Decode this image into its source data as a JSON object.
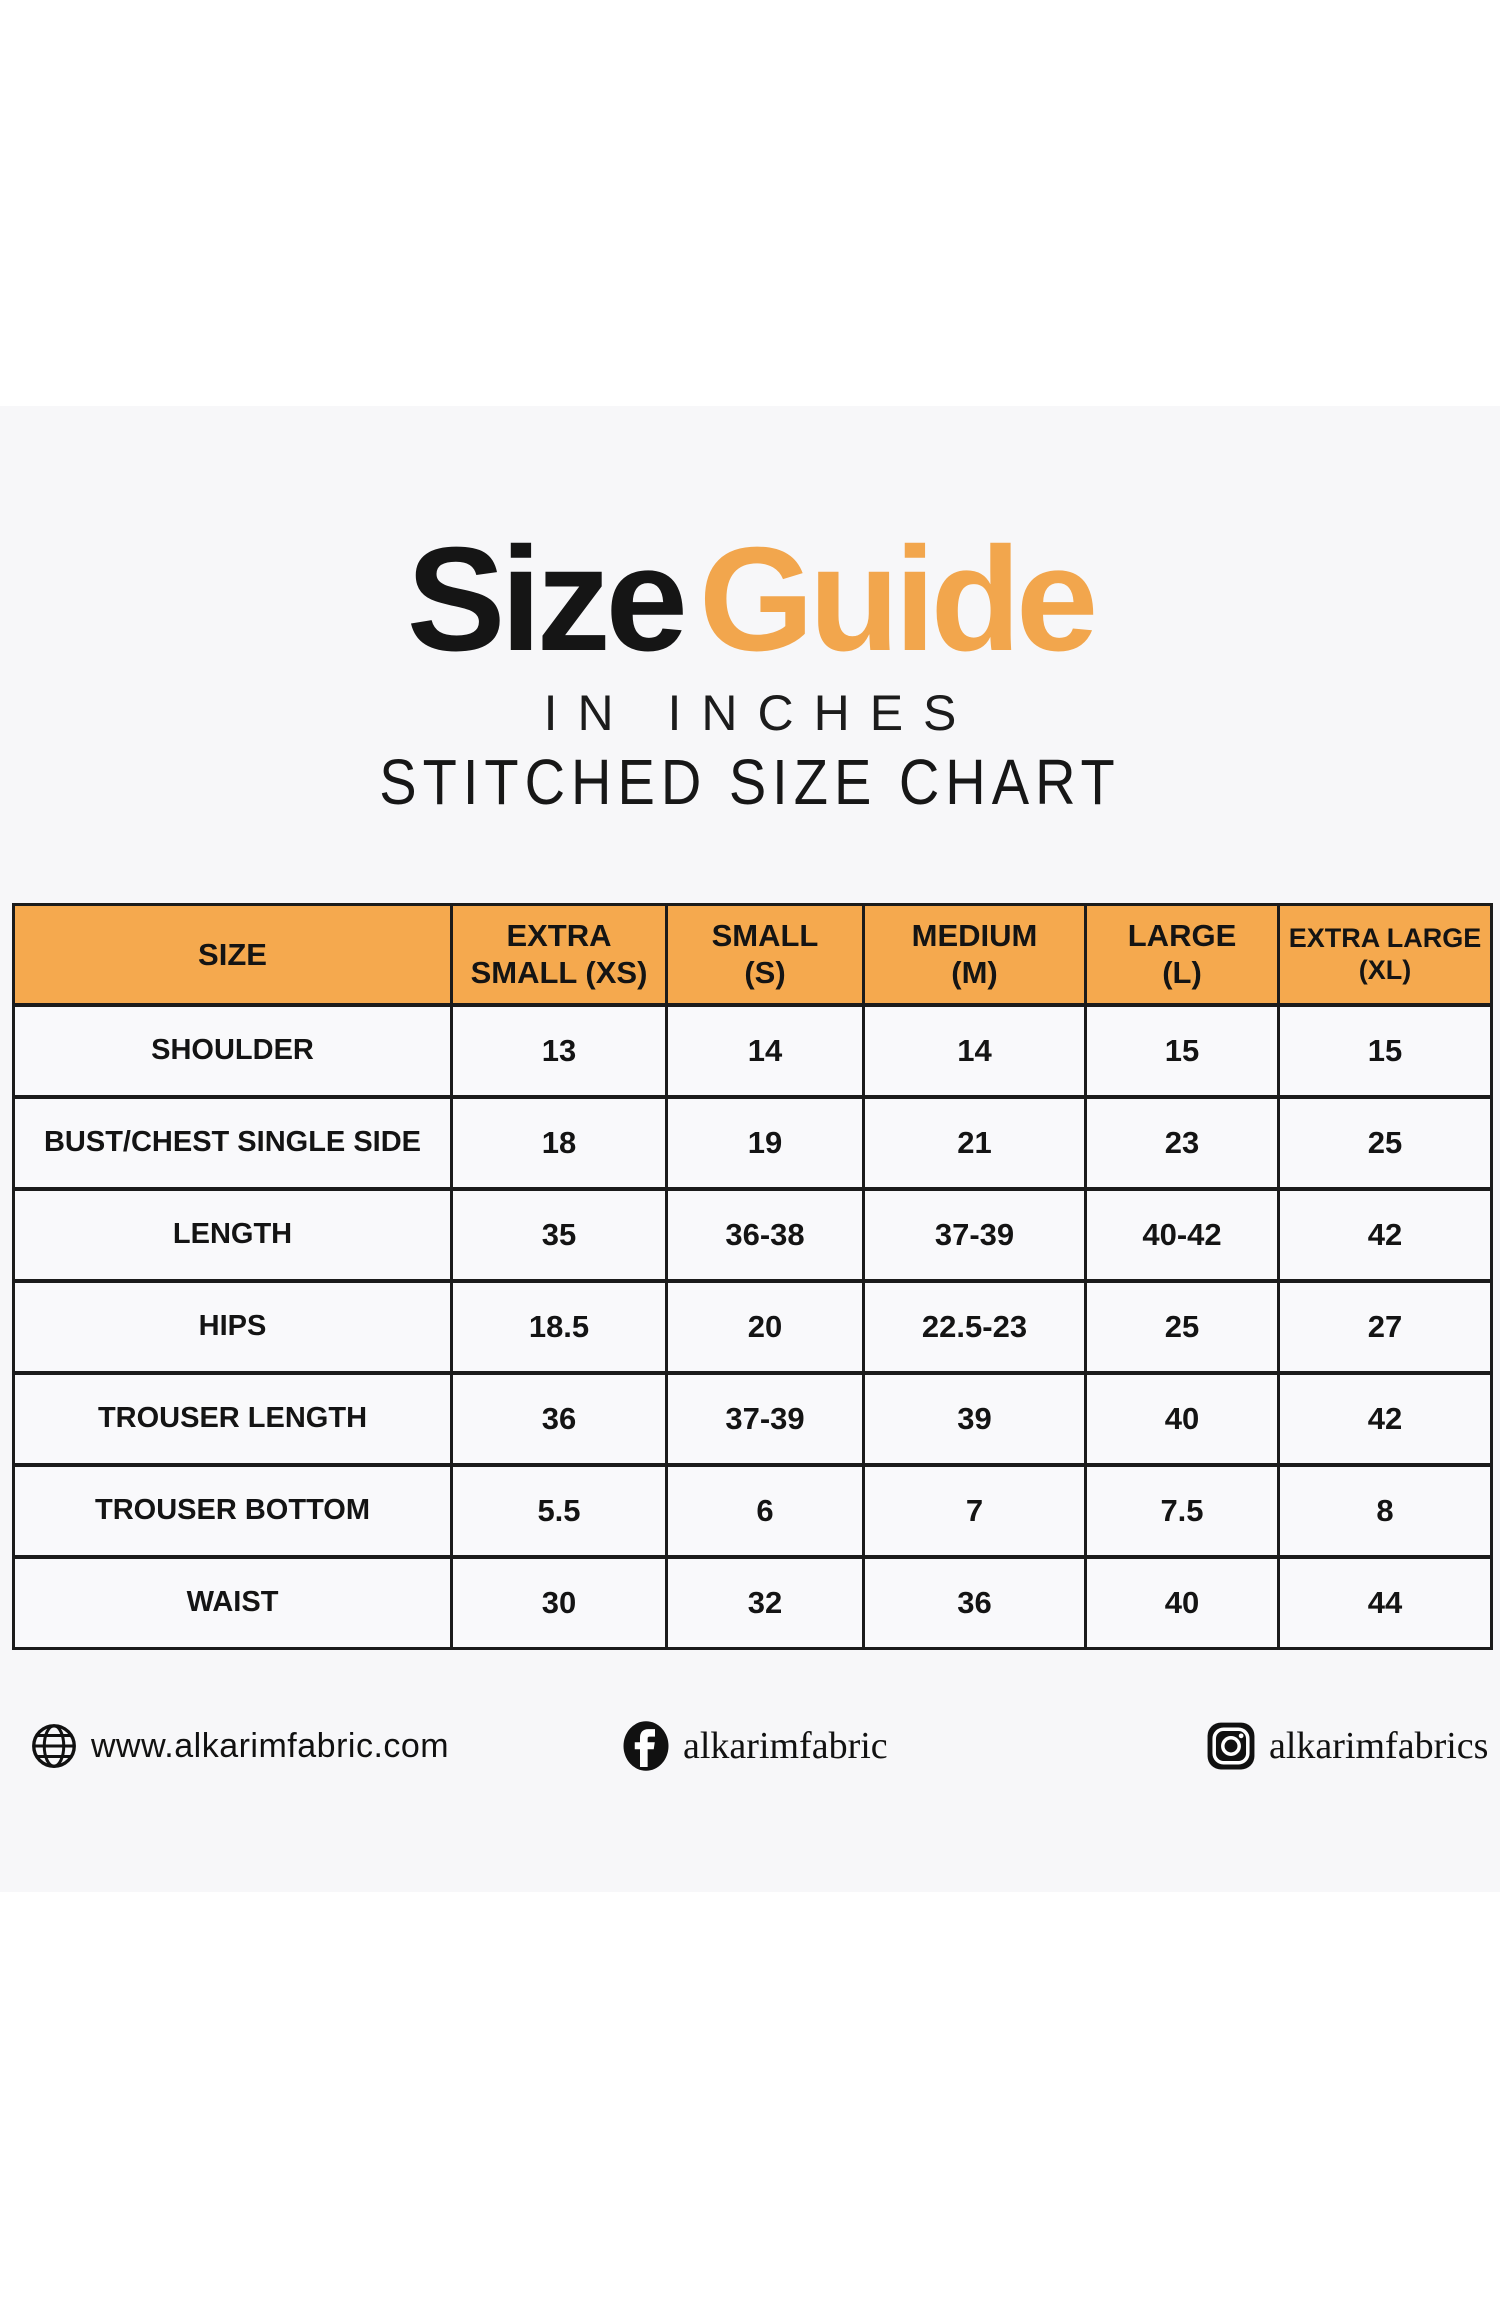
{
  "header": {
    "title_primary": "Size",
    "title_accent": "Guide",
    "subtitle": "IN INCHES",
    "chart_label": "STITCHED SIZE CHART"
  },
  "colors": {
    "accent_orange": "#F2A64D",
    "header_orange": "#F5A94E",
    "panel_bg": "#F7F7F9",
    "border_dark": "#1B1B1B",
    "text_dark": "#141414"
  },
  "table": {
    "columns": [
      {
        "lines": [
          "SIZE"
        ]
      },
      {
        "lines": [
          "EXTRA",
          "SMALL (XS)"
        ]
      },
      {
        "lines": [
          "SMALL",
          "(S)"
        ]
      },
      {
        "lines": [
          "MEDIUM",
          "(M)"
        ]
      },
      {
        "lines": [
          "LARGE",
          "(L)"
        ]
      },
      {
        "lines": [
          "EXTRA LARGE",
          "(XL)"
        ],
        "small": true
      }
    ],
    "rows": [
      {
        "label": "SHOULDER",
        "values": [
          "13",
          "14",
          "14",
          "15",
          "15"
        ]
      },
      {
        "label": "BUST/CHEST SINGLE SIDE",
        "values": [
          "18",
          "19",
          "21",
          "23",
          "25"
        ]
      },
      {
        "label": "LENGTH",
        "values": [
          "35",
          "36-38",
          "37-39",
          "40-42",
          "42"
        ]
      },
      {
        "label": "HIPS",
        "values": [
          "18.5",
          "20",
          "22.5-23",
          "25",
          "27"
        ]
      },
      {
        "label": "TROUSER LENGTH",
        "values": [
          "36",
          "37-39",
          "39",
          "40",
          "42"
        ]
      },
      {
        "label": "TROUSER BOTTOM",
        "values": [
          "5.5",
          "6",
          "7",
          "7.5",
          "8"
        ]
      },
      {
        "label": "WAIST",
        "values": [
          "30",
          "32",
          "36",
          "40",
          "44"
        ]
      }
    ]
  },
  "footer": {
    "website": "www.alkarimfabric.com",
    "facebook": "alkarimfabric",
    "instagram": "alkarimfabrics"
  },
  "chart_data": {
    "type": "table",
    "title": "Size Guide",
    "subtitle": "IN INCHES",
    "chart_label": "STITCHED SIZE CHART",
    "unit": "inches",
    "columns": [
      "SIZE",
      "EXTRA SMALL (XS)",
      "SMALL (S)",
      "MEDIUM (M)",
      "LARGE (L)",
      "EXTRA LARGE (XL)"
    ],
    "rows": [
      [
        "SHOULDER",
        "13",
        "14",
        "14",
        "15",
        "15"
      ],
      [
        "BUST/CHEST SINGLE SIDE",
        "18",
        "19",
        "21",
        "23",
        "25"
      ],
      [
        "LENGTH",
        "35",
        "36-38",
        "37-39",
        "40-42",
        "42"
      ],
      [
        "HIPS",
        "18.5",
        "20",
        "22.5-23",
        "25",
        "27"
      ],
      [
        "TROUSER LENGTH",
        "36",
        "37-39",
        "39",
        "40",
        "42"
      ],
      [
        "TROUSER BOTTOM",
        "5.5",
        "6",
        "7",
        "7.5",
        "8"
      ],
      [
        "WAIST",
        "30",
        "32",
        "36",
        "40",
        "44"
      ]
    ]
  }
}
